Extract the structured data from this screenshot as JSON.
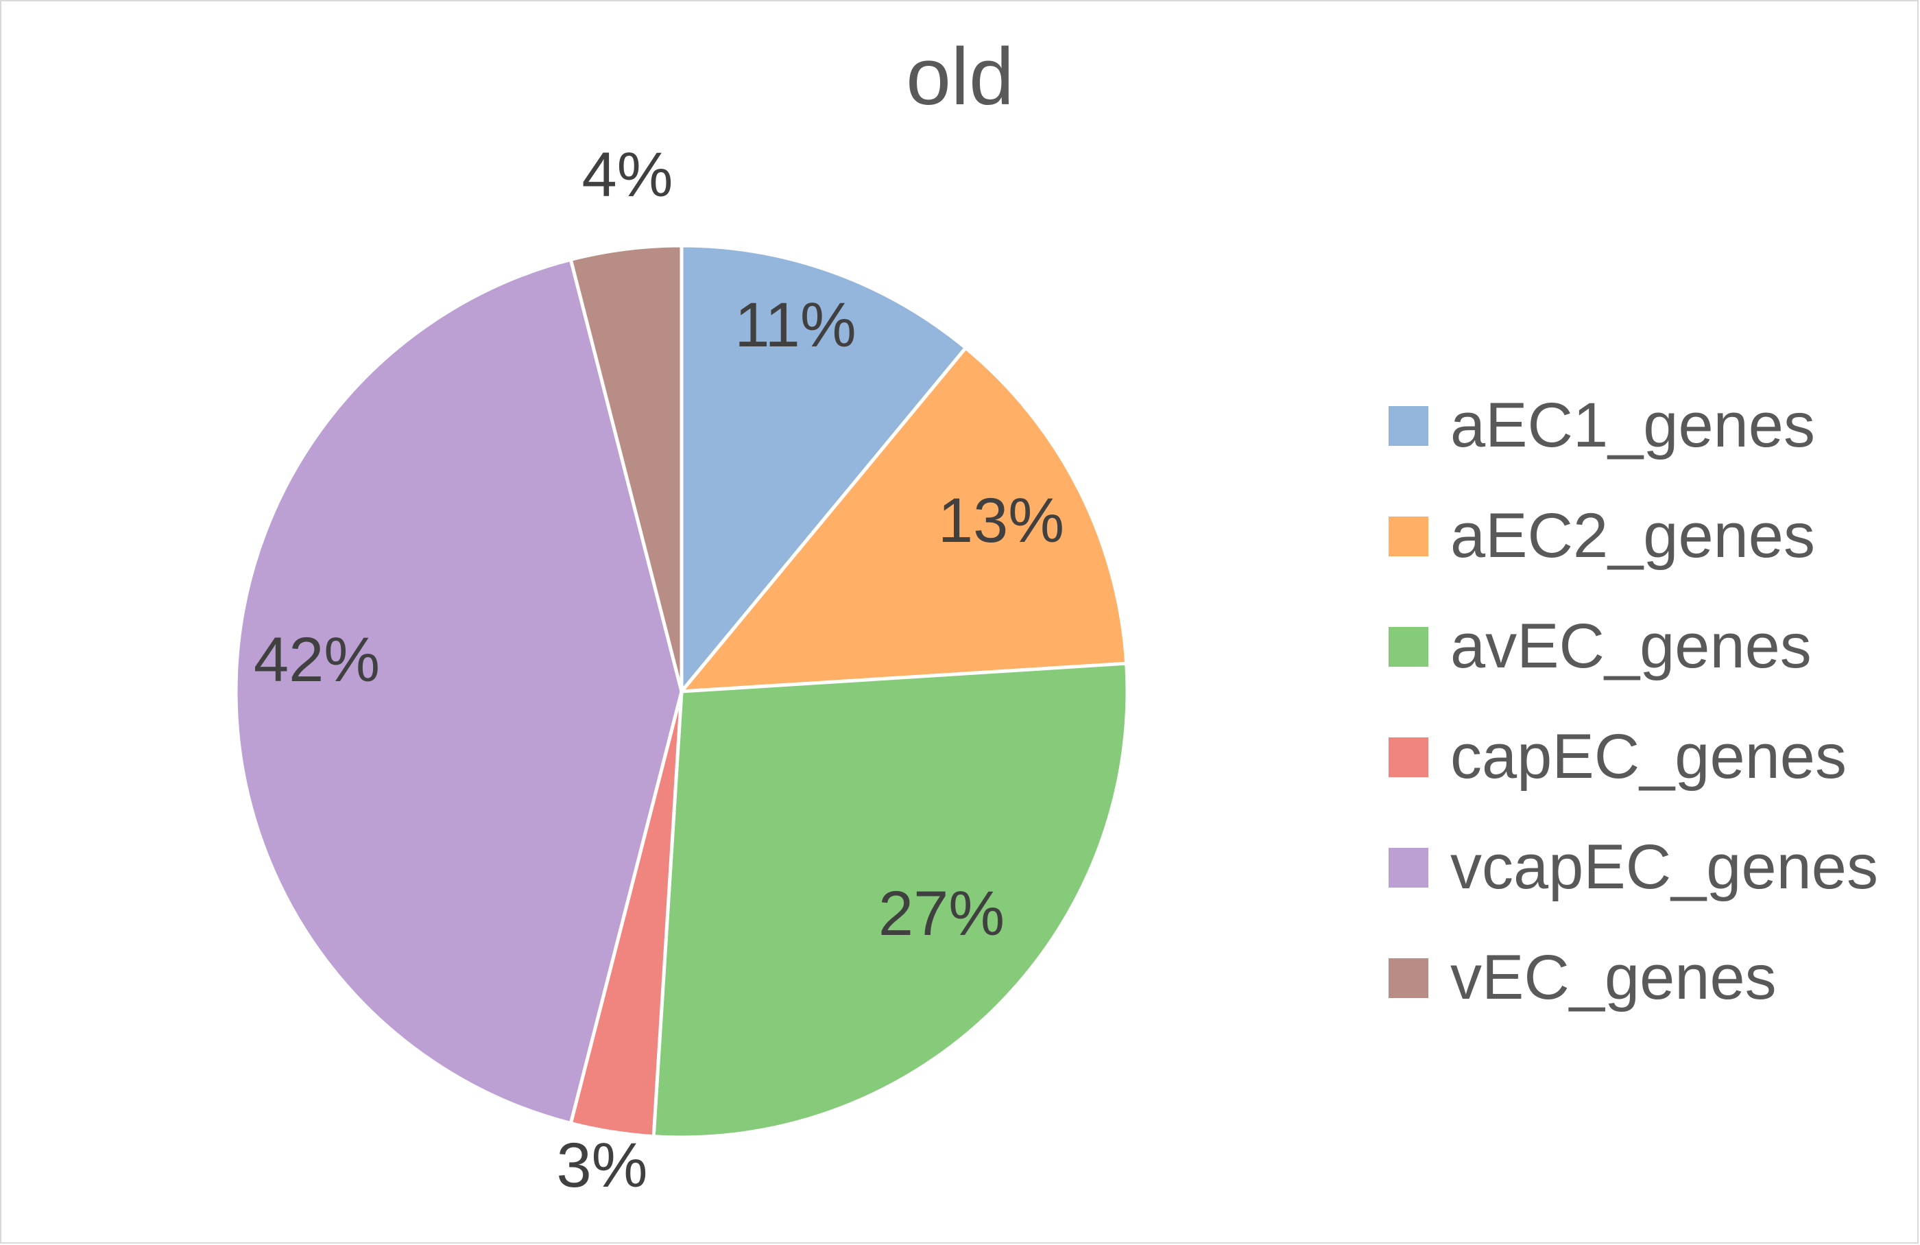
{
  "chart_data": {
    "type": "pie",
    "title": "old",
    "categories": [
      "aEC1_genes",
      "aEC2_genes",
      "avEC_genes",
      "capEC_genes",
      "vcapEC_genes",
      "vEC_genes"
    ],
    "values": [
      11,
      13,
      27,
      3,
      42,
      4
    ],
    "data_labels": [
      "11%",
      "13%",
      "27%",
      "3%",
      "42%",
      "4%"
    ],
    "colors": [
      "#95b6dc",
      "#ffb066",
      "#85cb79",
      "#f0857f",
      "#bca0d4",
      "#b88d86"
    ],
    "legend_position": "right",
    "start_angle": "12 o'clock",
    "direction": "clockwise"
  }
}
